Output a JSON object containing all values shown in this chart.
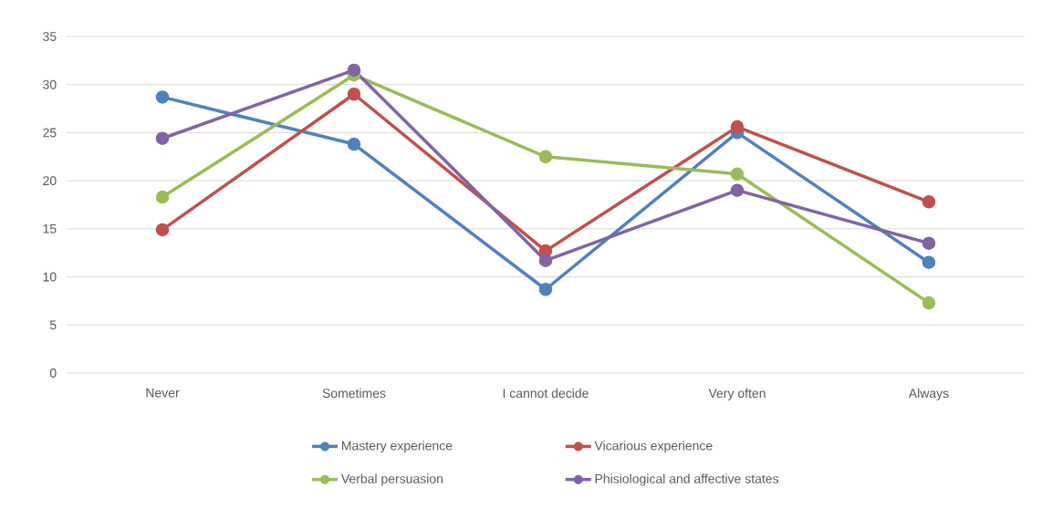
{
  "chart_data": {
    "type": "line",
    "categories": [
      "Never",
      "Sometimes",
      "I cannot decide",
      "Very often",
      "Always"
    ],
    "series": [
      {
        "name": "Mastery experience",
        "color": "#4f81bd",
        "values": [
          28.7,
          23.8,
          8.7,
          25.0,
          11.5
        ]
      },
      {
        "name": "Vicarious experience",
        "color": "#c0504d",
        "values": [
          14.9,
          29.0,
          12.7,
          25.6,
          17.8
        ]
      },
      {
        "name": "Verbal persuasion",
        "color": "#9bbb59",
        "values": [
          18.3,
          31.0,
          22.5,
          20.7,
          7.3
        ]
      },
      {
        "name": "Phisiological and affective states",
        "color": "#8064a2",
        "values": [
          24.4,
          31.5,
          11.7,
          19.0,
          13.5
        ]
      }
    ],
    "ylim": [
      0,
      35
    ],
    "yticks": [
      0,
      5,
      10,
      15,
      20,
      25,
      30,
      35
    ],
    "grid": "y",
    "legend": "bottom",
    "marker": "circle",
    "line_style": "solid"
  }
}
